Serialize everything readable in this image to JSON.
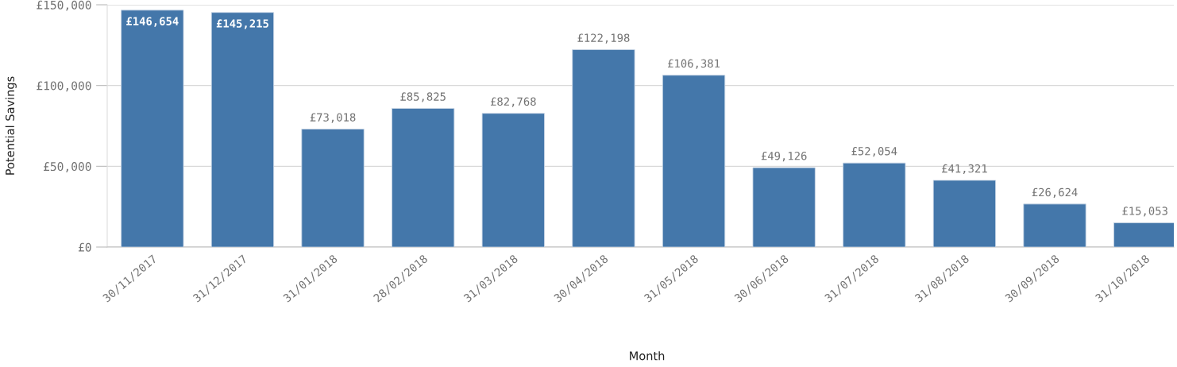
{
  "chart_data": {
    "type": "bar",
    "xlabel": "Month",
    "ylabel": "Potential Savings",
    "categories": [
      "30/11/2017",
      "31/12/2017",
      "31/01/2018",
      "28/02/2018",
      "31/03/2018",
      "30/04/2018",
      "31/05/2018",
      "30/06/2018",
      "31/07/2018",
      "31/08/2018",
      "30/09/2018",
      "31/10/2018"
    ],
    "values": [
      146654,
      145215,
      73018,
      85825,
      82768,
      122198,
      106381,
      49126,
      52054,
      41321,
      26624,
      15053
    ],
    "value_labels": [
      "£146,654",
      "£145,215",
      "£73,018",
      "£85,825",
      "£82,768",
      "£122,198",
      "£106,381",
      "£49,126",
      "£52,054",
      "£41,321",
      "£26,624",
      "£15,053"
    ],
    "color": "#4477aa",
    "ylim": [
      0,
      150000
    ],
    "yticks": [
      {
        "value": 0,
        "label": "£0"
      },
      {
        "value": 50000,
        "label": "£50,000"
      },
      {
        "value": 100000,
        "label": "£100,000"
      },
      {
        "value": 150000,
        "label": "£150,000"
      }
    ],
    "grid": "y"
  }
}
